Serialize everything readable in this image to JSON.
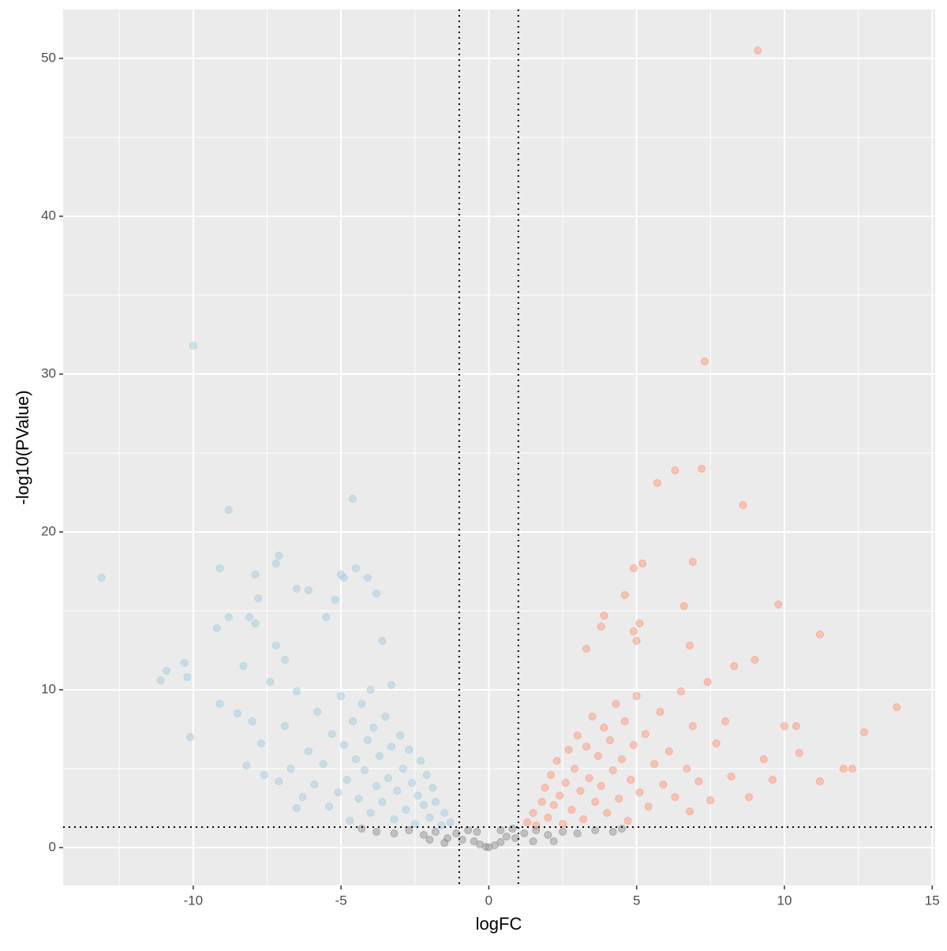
{
  "chart_data": {
    "type": "scatter",
    "x_label": "logFC",
    "y_label": "-log10(PValue)",
    "xlim": [
      -14.4,
      15.1
    ],
    "ylim": [
      -2.4,
      53.1
    ],
    "xticks": [
      -10,
      -5,
      0,
      5,
      10,
      15
    ],
    "yticks": [
      0,
      10,
      20,
      30,
      40,
      50
    ],
    "grid": true,
    "vlines": [
      -1,
      1
    ],
    "hlines": [
      1.3
    ],
    "series": [
      {
        "color": "#9ecae1",
        "x": [
          -13.1,
          -10.0,
          -10.1,
          -10.2,
          -10.3,
          -11.1,
          -10.9,
          -9.1,
          -8.8,
          -9.2,
          -9.1,
          -8.8,
          -8.5,
          -8.1,
          -7.9,
          -7.8,
          -7.9,
          -7.2,
          -7.1,
          -7.2,
          -6.9,
          -6.5,
          -6.1,
          -5.0,
          -4.9,
          -4.6,
          -4.5,
          -4.1,
          -3.8,
          -3.6,
          -5.2,
          -5.5,
          -7.6,
          -8.2,
          -6.5,
          -4.0,
          -3.3,
          -1.3,
          -1.5,
          -1.6,
          -1.8,
          -1.9,
          -2.0,
          -2.1,
          -2.2,
          -2.3,
          -2.4,
          -2.5,
          -2.6,
          -2.7,
          -2.8,
          -2.9,
          -3.0,
          -3.1,
          -3.2,
          -3.3,
          -3.4,
          -3.5,
          -3.6,
          -3.7,
          -3.8,
          -3.9,
          -4.0,
          -4.1,
          -4.2,
          -4.3,
          -4.4,
          -4.5,
          -4.6,
          -4.7,
          -4.8,
          -4.9,
          -5.0,
          -5.1,
          -5.3,
          -5.4,
          -5.6,
          -5.8,
          -5.9,
          -6.1,
          -6.3,
          -6.5,
          -6.7,
          -6.9,
          -7.1,
          -7.4,
          -7.7,
          -8.0,
          -8.3
        ],
        "values": [
          17.1,
          31.8,
          7.0,
          10.8,
          11.7,
          10.6,
          11.2,
          17.7,
          21.4,
          13.9,
          9.1,
          14.6,
          8.5,
          14.6,
          14.2,
          15.8,
          17.3,
          18.0,
          18.5,
          12.8,
          11.9,
          16.4,
          16.3,
          17.3,
          17.1,
          22.1,
          17.7,
          17.1,
          16.1,
          13.1,
          15.7,
          14.6,
          4.6,
          5.2,
          2.5,
          10.0,
          10.3,
          1.6,
          2.2,
          1.4,
          2.9,
          3.8,
          1.9,
          4.6,
          2.7,
          5.5,
          3.3,
          1.5,
          4.1,
          6.2,
          2.4,
          5.0,
          7.1,
          3.6,
          1.8,
          6.4,
          4.4,
          8.3,
          2.9,
          5.8,
          3.9,
          7.6,
          2.2,
          6.8,
          4.9,
          9.1,
          3.1,
          5.6,
          8.0,
          1.7,
          4.3,
          6.5,
          9.6,
          3.5,
          7.2,
          2.6,
          5.3,
          8.6,
          4.0,
          6.1,
          3.2,
          9.9,
          5.0,
          7.7,
          4.2,
          10.5,
          6.6,
          8.0,
          11.5
        ]
      },
      {
        "color": "#fc9272",
        "x": [
          9.1,
          7.3,
          6.3,
          5.7,
          7.2,
          8.6,
          5.2,
          4.9,
          6.9,
          4.6,
          6.6,
          9.8,
          11.2,
          13.8,
          12.7,
          12.3,
          12.0,
          11.2,
          10.5,
          10.0,
          10.4,
          9.0,
          6.8,
          3.3,
          3.9,
          3.8,
          5.1,
          5.0,
          4.9,
          1.3,
          1.5,
          1.6,
          1.8,
          1.9,
          2.0,
          2.1,
          2.2,
          2.3,
          2.4,
          2.5,
          2.6,
          2.7,
          2.8,
          2.9,
          3.0,
          3.1,
          3.2,
          3.3,
          3.4,
          3.5,
          3.6,
          3.7,
          3.8,
          3.9,
          4.0,
          4.1,
          4.2,
          4.3,
          4.4,
          4.5,
          4.6,
          4.7,
          4.8,
          4.9,
          5.0,
          5.1,
          5.3,
          5.4,
          5.6,
          5.8,
          5.9,
          6.1,
          6.3,
          6.5,
          6.7,
          6.9,
          7.1,
          7.4,
          7.7,
          8.0,
          8.3,
          8.2,
          8.8,
          9.3,
          7.5,
          6.8,
          9.6
        ],
        "values": [
          50.5,
          30.8,
          23.9,
          23.1,
          24.0,
          21.7,
          18.0,
          17.7,
          18.1,
          16.0,
          15.3,
          15.4,
          13.5,
          8.9,
          7.3,
          5.0,
          5.0,
          4.2,
          6.0,
          7.7,
          7.7,
          11.9,
          12.8,
          12.6,
          14.7,
          14.0,
          14.2,
          13.1,
          13.7,
          1.6,
          2.2,
          1.4,
          2.9,
          3.8,
          1.9,
          4.6,
          2.7,
          5.5,
          3.3,
          1.5,
          4.1,
          6.2,
          2.4,
          5.0,
          7.1,
          3.6,
          1.8,
          6.4,
          4.4,
          8.3,
          2.9,
          5.8,
          3.9,
          7.6,
          2.2,
          6.8,
          4.9,
          9.1,
          3.1,
          5.6,
          8.0,
          1.7,
          4.3,
          6.5,
          9.6,
          3.5,
          7.2,
          2.6,
          5.3,
          8.6,
          4.0,
          6.1,
          3.2,
          9.9,
          5.0,
          7.7,
          4.2,
          10.5,
          6.6,
          8.0,
          11.5,
          4.5,
          3.2,
          5.6,
          3.0,
          2.3,
          4.3
        ]
      },
      {
        "color": "#8c8c8c",
        "x": [
          -3.8,
          -3.2,
          -2.7,
          -2.2,
          -1.8,
          -1.4,
          -1.1,
          -0.9,
          -0.7,
          -0.5,
          -0.3,
          -0.1,
          0.0,
          0.2,
          0.4,
          0.6,
          0.8,
          0.9,
          1.2,
          1.6,
          2.0,
          2.5,
          3.0,
          3.6,
          4.2,
          4.5,
          -4.3,
          -2.0,
          -1.5,
          1.5,
          2.2,
          -0.4,
          0.4
        ],
        "values": [
          1.0,
          0.9,
          1.1,
          0.8,
          1.0,
          0.6,
          0.9,
          0.5,
          1.1,
          0.4,
          0.2,
          0.05,
          0.02,
          0.15,
          0.35,
          0.7,
          1.2,
          0.6,
          0.9,
          1.1,
          0.8,
          1.0,
          0.9,
          1.1,
          1.0,
          1.2,
          1.2,
          0.5,
          0.3,
          0.4,
          0.4,
          1.0,
          1.1
        ]
      }
    ]
  }
}
